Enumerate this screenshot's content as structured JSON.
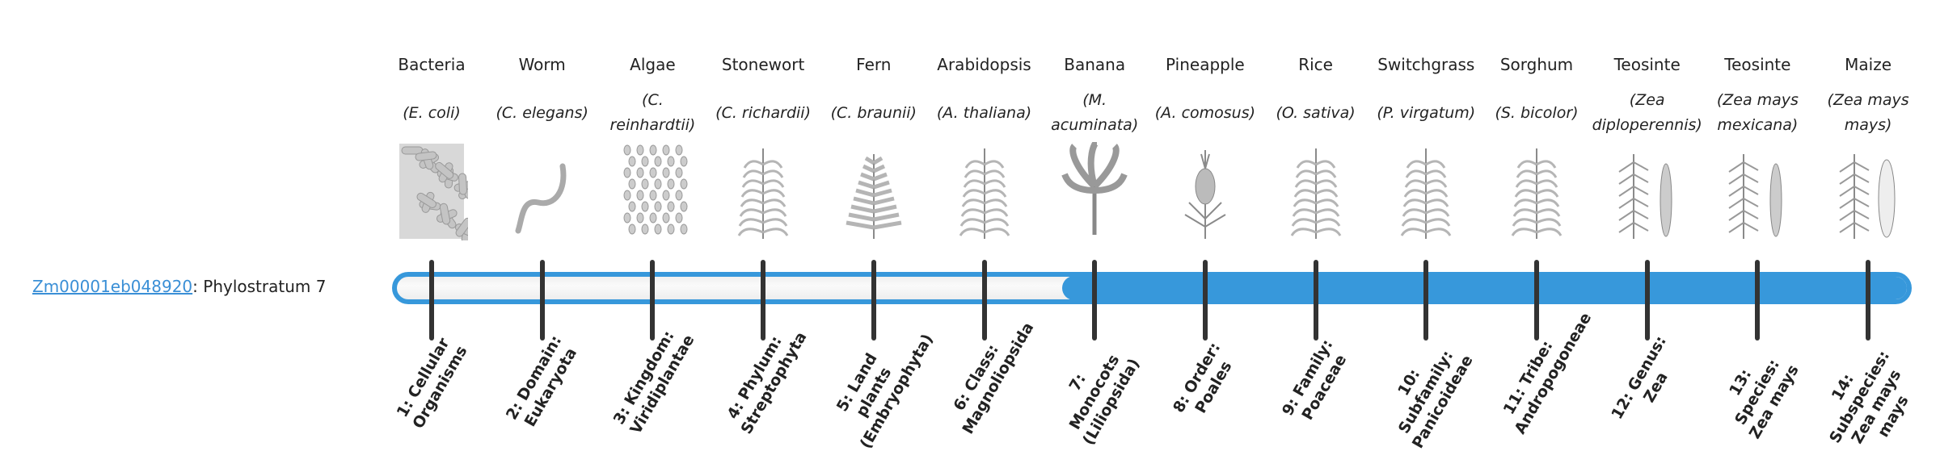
{
  "gene": {
    "id": "Zm00001eb048920",
    "separator": ":",
    "stratum_label": "Phylostratum 7"
  },
  "progress": {
    "current_stratum": 7,
    "total_strata": 14,
    "color": "#3798db"
  },
  "columns": [
    {
      "common": "Bacteria",
      "scientific": "(E. coli)",
      "icon": "bacteria-icon",
      "stratum": "1: Cellular Organisms"
    },
    {
      "common": "Worm",
      "scientific": "(C. elegans)",
      "icon": "worm-icon",
      "stratum": "2: Domain: Eukaryota"
    },
    {
      "common": "Algae",
      "scientific": "(C. reinhardtii)",
      "icon": "algae-icon",
      "stratum": "3: Kingdom: Viridiplantae"
    },
    {
      "common": "Stonewort",
      "scientific": "(C. richardii)",
      "icon": "stonewort-icon",
      "stratum": "4: Phylum: Streptophyta"
    },
    {
      "common": "Fern",
      "scientific": "(C. braunii)",
      "icon": "fern-icon",
      "stratum": "5: Land plants (Embryophyta)"
    },
    {
      "common": "Arabidopsis",
      "scientific": "(A. thaliana)",
      "icon": "arabidopsis-icon",
      "stratum": "6: Class: Magnoliopsida"
    },
    {
      "common": "Banana",
      "scientific": "(M. acuminata)",
      "icon": "banana-icon",
      "stratum": "7: Monocots (Liliopsida)"
    },
    {
      "common": "Pineapple",
      "scientific": "(A. comosus)",
      "icon": "pineapple-icon",
      "stratum": "8: Order: Poales"
    },
    {
      "common": "Rice",
      "scientific": "(O. sativa)",
      "icon": "rice-icon",
      "stratum": "9: Family: Poaceae"
    },
    {
      "common": "Switchgrass",
      "scientific": "(P. virgatum)",
      "icon": "switchgrass-icon",
      "stratum": "10: Subfamily: Panicoideae"
    },
    {
      "common": "Sorghum",
      "scientific": "(S. bicolor)",
      "icon": "sorghum-icon",
      "stratum": "11: Tribe: Andropogoneae"
    },
    {
      "common": "Teosinte",
      "scientific": "(Zea diploperennis)",
      "icon": "teosinte-icon",
      "stratum": "12: Genus: Zea"
    },
    {
      "common": "Teosinte",
      "scientific": "(Zea mays mexicana)",
      "icon": "teosinte-icon",
      "stratum": "13: Species: Zea mays"
    },
    {
      "common": "Maize",
      "scientific": "(Zea mays mays)",
      "icon": "maize-icon",
      "stratum": "14: Subspecies: Zea mays mays"
    }
  ]
}
